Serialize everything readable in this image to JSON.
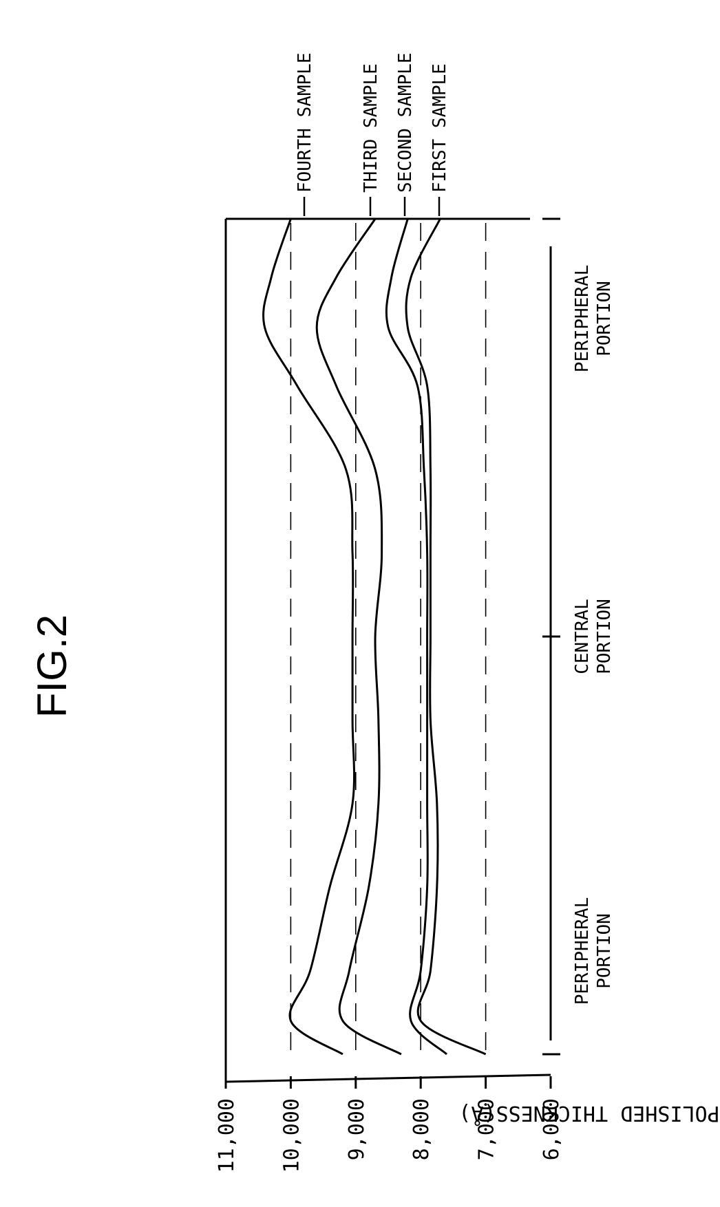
{
  "figure": {
    "title": "FIG.2"
  },
  "chart_data": {
    "type": "line",
    "title": "FIG.2",
    "ylabel": "POLISHED THICKNESS(Å)",
    "ylim": [
      6000,
      11000
    ],
    "yticks": [
      11000,
      10000,
      9000,
      8000,
      7000,
      6000
    ],
    "ytick_labels": [
      "11,000",
      "10,000",
      "9,000",
      "8,000",
      "7,000",
      "6,000"
    ],
    "x_categories": [
      {
        "lines": [
          "PERIPHERAL",
          "PORTION"
        ]
      },
      {
        "lines": [
          "CENTRAL",
          "PORTION"
        ]
      },
      {
        "lines": [
          "PERIPHERAL",
          "PORTION"
        ]
      }
    ],
    "grid": "dashed horizontal",
    "x": [
      0,
      0.04,
      0.1,
      0.2,
      0.3,
      0.4,
      0.5,
      0.6,
      0.7,
      0.8,
      0.87,
      0.93,
      1.0
    ],
    "series": [
      {
        "name": "FOURTH SAMPLE",
        "values": [
          9200,
          10000,
          9700,
          9400,
          9050,
          9050,
          9050,
          9050,
          9150,
          9900,
          10400,
          10300,
          10000
        ]
      },
      {
        "name": "THIRD SAMPLE",
        "values": [
          8300,
          9200,
          9100,
          8800,
          8650,
          8650,
          8700,
          8600,
          8700,
          9300,
          9600,
          9300,
          8700
        ]
      },
      {
        "name": "SECOND SAMPLE",
        "values": [
          7600,
          8150,
          8000,
          7900,
          7900,
          7900,
          7900,
          7900,
          7950,
          8050,
          8500,
          8450,
          8200
        ]
      },
      {
        "name": "FIRST SAMPLE",
        "values": [
          7000,
          8000,
          7850,
          7750,
          7750,
          7850,
          7850,
          7850,
          7850,
          7900,
          8200,
          8150,
          7700
        ]
      }
    ]
  }
}
